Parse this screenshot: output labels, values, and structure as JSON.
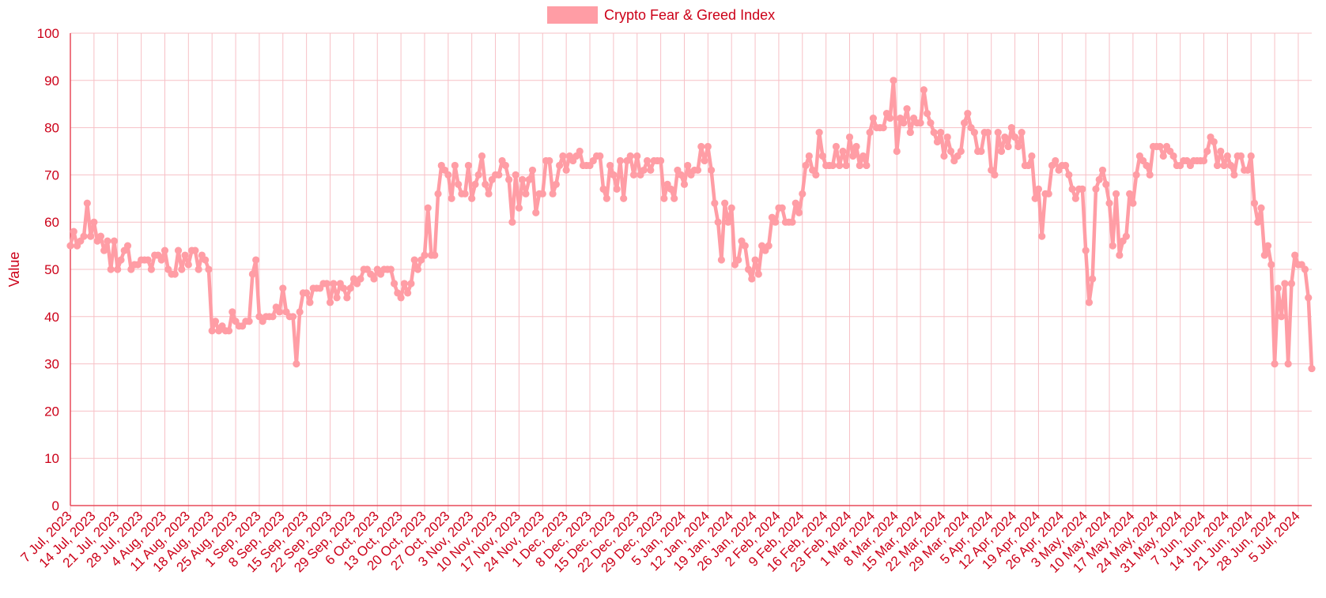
{
  "chart_data": {
    "type": "line",
    "title": "",
    "ylabel": "Value",
    "xlabel": "",
    "ylim": [
      0,
      100
    ],
    "y_ticks": [
      0,
      10,
      20,
      30,
      40,
      50,
      60,
      70,
      80,
      90,
      100
    ],
    "grid": true,
    "legend_position": "top-center",
    "colors": {
      "series": "#ff9da5",
      "text": "#cc0018",
      "grid": "#f7c0c6",
      "axis": "#e84a5a"
    },
    "x_tick_labels": [
      "7 Jul, 2023",
      "14 Jul, 2023",
      "21 Jul, 2023",
      "28 Jul, 2023",
      "4 Aug, 2023",
      "11 Aug, 2023",
      "18 Aug, 2023",
      "25 Aug, 2023",
      "1 Sep, 2023",
      "8 Sep, 2023",
      "15 Sep, 2023",
      "22 Sep, 2023",
      "29 Sep, 2023",
      "6 Oct, 2023",
      "13 Oct, 2023",
      "20 Oct, 2023",
      "27 Oct, 2023",
      "3 Nov, 2023",
      "10 Nov, 2023",
      "17 Nov, 2023",
      "24 Nov, 2023",
      "1 Dec, 2023",
      "8 Dec, 2023",
      "15 Dec, 2023",
      "22 Dec, 2023",
      "29 Dec, 2023",
      "5 Jan, 2024",
      "12 Jan, 2024",
      "19 Jan, 2024",
      "26 Jan, 2024",
      "2 Feb, 2024",
      "9 Feb, 2024",
      "16 Feb, 2024",
      "23 Feb, 2024",
      "1 Mar, 2024",
      "8 Mar, 2024",
      "15 Mar, 2024",
      "22 Mar, 2024",
      "29 Mar, 2024",
      "5 Apr, 2024",
      "12 Apr, 2024",
      "19 Apr, 2024",
      "26 Apr, 2024",
      "3 May, 2024",
      "10 May, 2024",
      "17 May, 2024",
      "24 May, 2024",
      "31 May, 2024",
      "7 Jun, 2024",
      "14 Jun, 2024",
      "21 Jun, 2024",
      "28 Jun, 2024",
      "5 Jul, 2024"
    ],
    "x_start": "7 Jul, 2023",
    "x_end": "5 Jul, 2024",
    "series": [
      {
        "name": "Crypto Fear & Greed Index",
        "note": "daily values in chronological order from 7 Jul, 2023 to 5 Jul, 2024",
        "values": [
          55,
          58,
          55,
          56,
          57,
          64,
          57,
          60,
          56,
          57,
          54,
          56,
          50,
          56,
          50,
          52,
          54,
          55,
          50,
          51,
          51,
          52,
          52,
          52,
          50,
          53,
          53,
          52,
          54,
          50,
          49,
          49,
          54,
          50,
          53,
          51,
          54,
          54,
          50,
          53,
          52,
          50,
          37,
          39,
          37,
          38,
          37,
          37,
          41,
          39,
          38,
          38,
          39,
          39,
          49,
          52,
          40,
          39,
          40,
          40,
          40,
          42,
          41,
          46,
          41,
          40,
          40,
          30,
          41,
          45,
          45,
          43,
          46,
          46,
          46,
          47,
          47,
          43,
          47,
          44,
          47,
          46,
          44,
          46,
          48,
          47,
          48,
          50,
          50,
          49,
          48,
          50,
          49,
          50,
          50,
          50,
          47,
          45,
          44,
          47,
          45,
          47,
          52,
          50,
          52,
          53,
          63,
          53,
          53,
          66,
          72,
          71,
          70,
          65,
          72,
          68,
          66,
          66,
          72,
          65,
          68,
          70,
          74,
          68,
          66,
          69,
          70,
          70,
          73,
          72,
          69,
          60,
          70,
          63,
          69,
          66,
          69,
          71,
          62,
          66,
          66,
          73,
          73,
          66,
          68,
          72,
          74,
          71,
          74,
          73,
          74,
          75,
          72,
          72,
          72,
          73,
          74,
          74,
          67,
          65,
          72,
          70,
          67,
          73,
          65,
          73,
          74,
          70,
          74,
          70,
          71,
          73,
          71,
          73,
          73,
          73,
          65,
          68,
          67,
          65,
          71,
          70,
          68,
          72,
          70,
          71,
          71,
          76,
          73,
          76,
          71,
          64,
          60,
          52,
          64,
          60,
          63,
          51,
          52,
          56,
          55,
          50,
          48,
          52,
          49,
          55,
          54,
          55,
          61,
          60,
          63,
          63,
          60,
          60,
          60,
          64,
          62,
          66,
          72,
          74,
          71,
          70,
          79,
          74,
          72,
          72,
          72,
          76,
          72,
          75,
          72,
          78,
          74,
          76,
          72,
          74,
          72,
          79,
          82,
          80,
          80,
          80,
          83,
          82,
          90,
          75,
          82,
          81,
          84,
          79,
          82,
          81,
          81,
          88,
          83,
          81,
          79,
          77,
          79,
          74,
          78,
          75,
          73,
          74,
          75,
          81,
          83,
          80,
          79,
          75,
          75,
          79,
          79,
          71,
          70,
          79,
          75,
          78,
          76,
          80,
          78,
          76,
          79,
          72,
          72,
          74,
          65,
          67,
          57,
          66,
          66,
          72,
          73,
          71,
          72,
          72,
          70,
          67,
          65,
          67,
          67,
          54,
          43,
          48,
          67,
          69,
          71,
          68,
          64,
          55,
          66,
          53,
          56,
          57,
          66,
          64,
          70,
          74,
          73,
          72,
          70,
          76,
          76,
          76,
          74,
          76,
          75,
          74,
          72,
          72,
          73,
          73,
          72,
          73,
          73,
          73,
          73,
          75,
          78,
          77,
          72,
          75,
          72,
          74,
          72,
          70,
          74,
          74,
          71,
          71,
          74,
          64,
          60,
          63,
          53,
          55,
          51,
          30,
          46,
          40,
          47,
          30,
          47,
          53,
          51,
          51,
          50,
          44,
          29
        ]
      }
    ]
  }
}
